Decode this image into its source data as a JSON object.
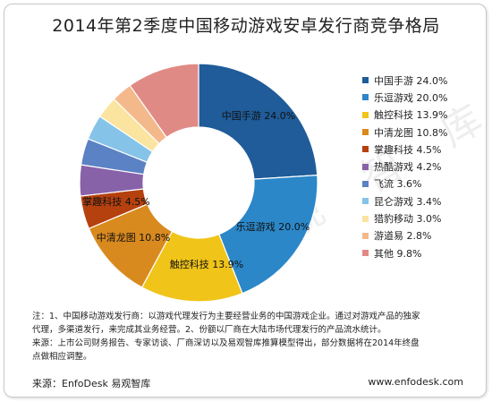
{
  "title": "2014年第2季度中国移动游戏安卓发行商竞争格局",
  "watermark": "易 观 智 库",
  "note_lines": [
    "注：1、中国移动游戏发行商：以游戏代理发行为主要经营业务的中国游戏企业。通过对游戏产品的独家",
    "代理，多渠道发行，来完成其业务经营。2、份额以厂商在大陆市场代理发行的产品流水统计。",
    "来源：上市公司财务报告、专家访谈、厂商深访以及易观智库推算模型得出，部分数据将在2014年终盘",
    "点做相应调整。"
  ],
  "source": "来源：EnfoDesk 易观智库",
  "site": "www.enfodesk.com",
  "chart_data": {
    "type": "pie",
    "title": "2014年第2季度中国移动游戏安卓发行商竞争格局",
    "donut": true,
    "legend_position": "right",
    "slices": [
      {
        "label": "中国手游",
        "value": 24.0,
        "display": "24.0%",
        "color": "#1f5c99"
      },
      {
        "label": "乐逗游戏",
        "value": 20.0,
        "display": "20.0%",
        "color": "#2b87c8"
      },
      {
        "label": "触控科技",
        "value": 13.9,
        "display": "13.9%",
        "color": "#f0c419"
      },
      {
        "label": "中清龙图",
        "value": 10.8,
        "display": "10.8%",
        "color": "#d98a1f"
      },
      {
        "label": "掌趣科技",
        "value": 4.5,
        "display": "4.5%",
        "color": "#b5410f"
      },
      {
        "label": "热酷游戏",
        "value": 4.2,
        "display": "4.2%",
        "color": "#8862a8"
      },
      {
        "label": "飞流",
        "value": 3.6,
        "display": "3.6%",
        "color": "#5b82c4"
      },
      {
        "label": "昆仑游戏",
        "value": 3.4,
        "display": "3.4%",
        "color": "#86c3e8"
      },
      {
        "label": "猎豹移动",
        "value": 3.0,
        "display": "3.0%",
        "color": "#fbe4a0"
      },
      {
        "label": "游道易",
        "value": 2.8,
        "display": "2.8%",
        "color": "#f4b98a"
      },
      {
        "label": "其他",
        "value": 9.8,
        "display": "9.8%",
        "color": "#e08a86"
      }
    ],
    "data_labels_shown": [
      "中国手游",
      "乐逗游戏",
      "触控科技",
      "中清龙图",
      "掌趣科技"
    ]
  }
}
